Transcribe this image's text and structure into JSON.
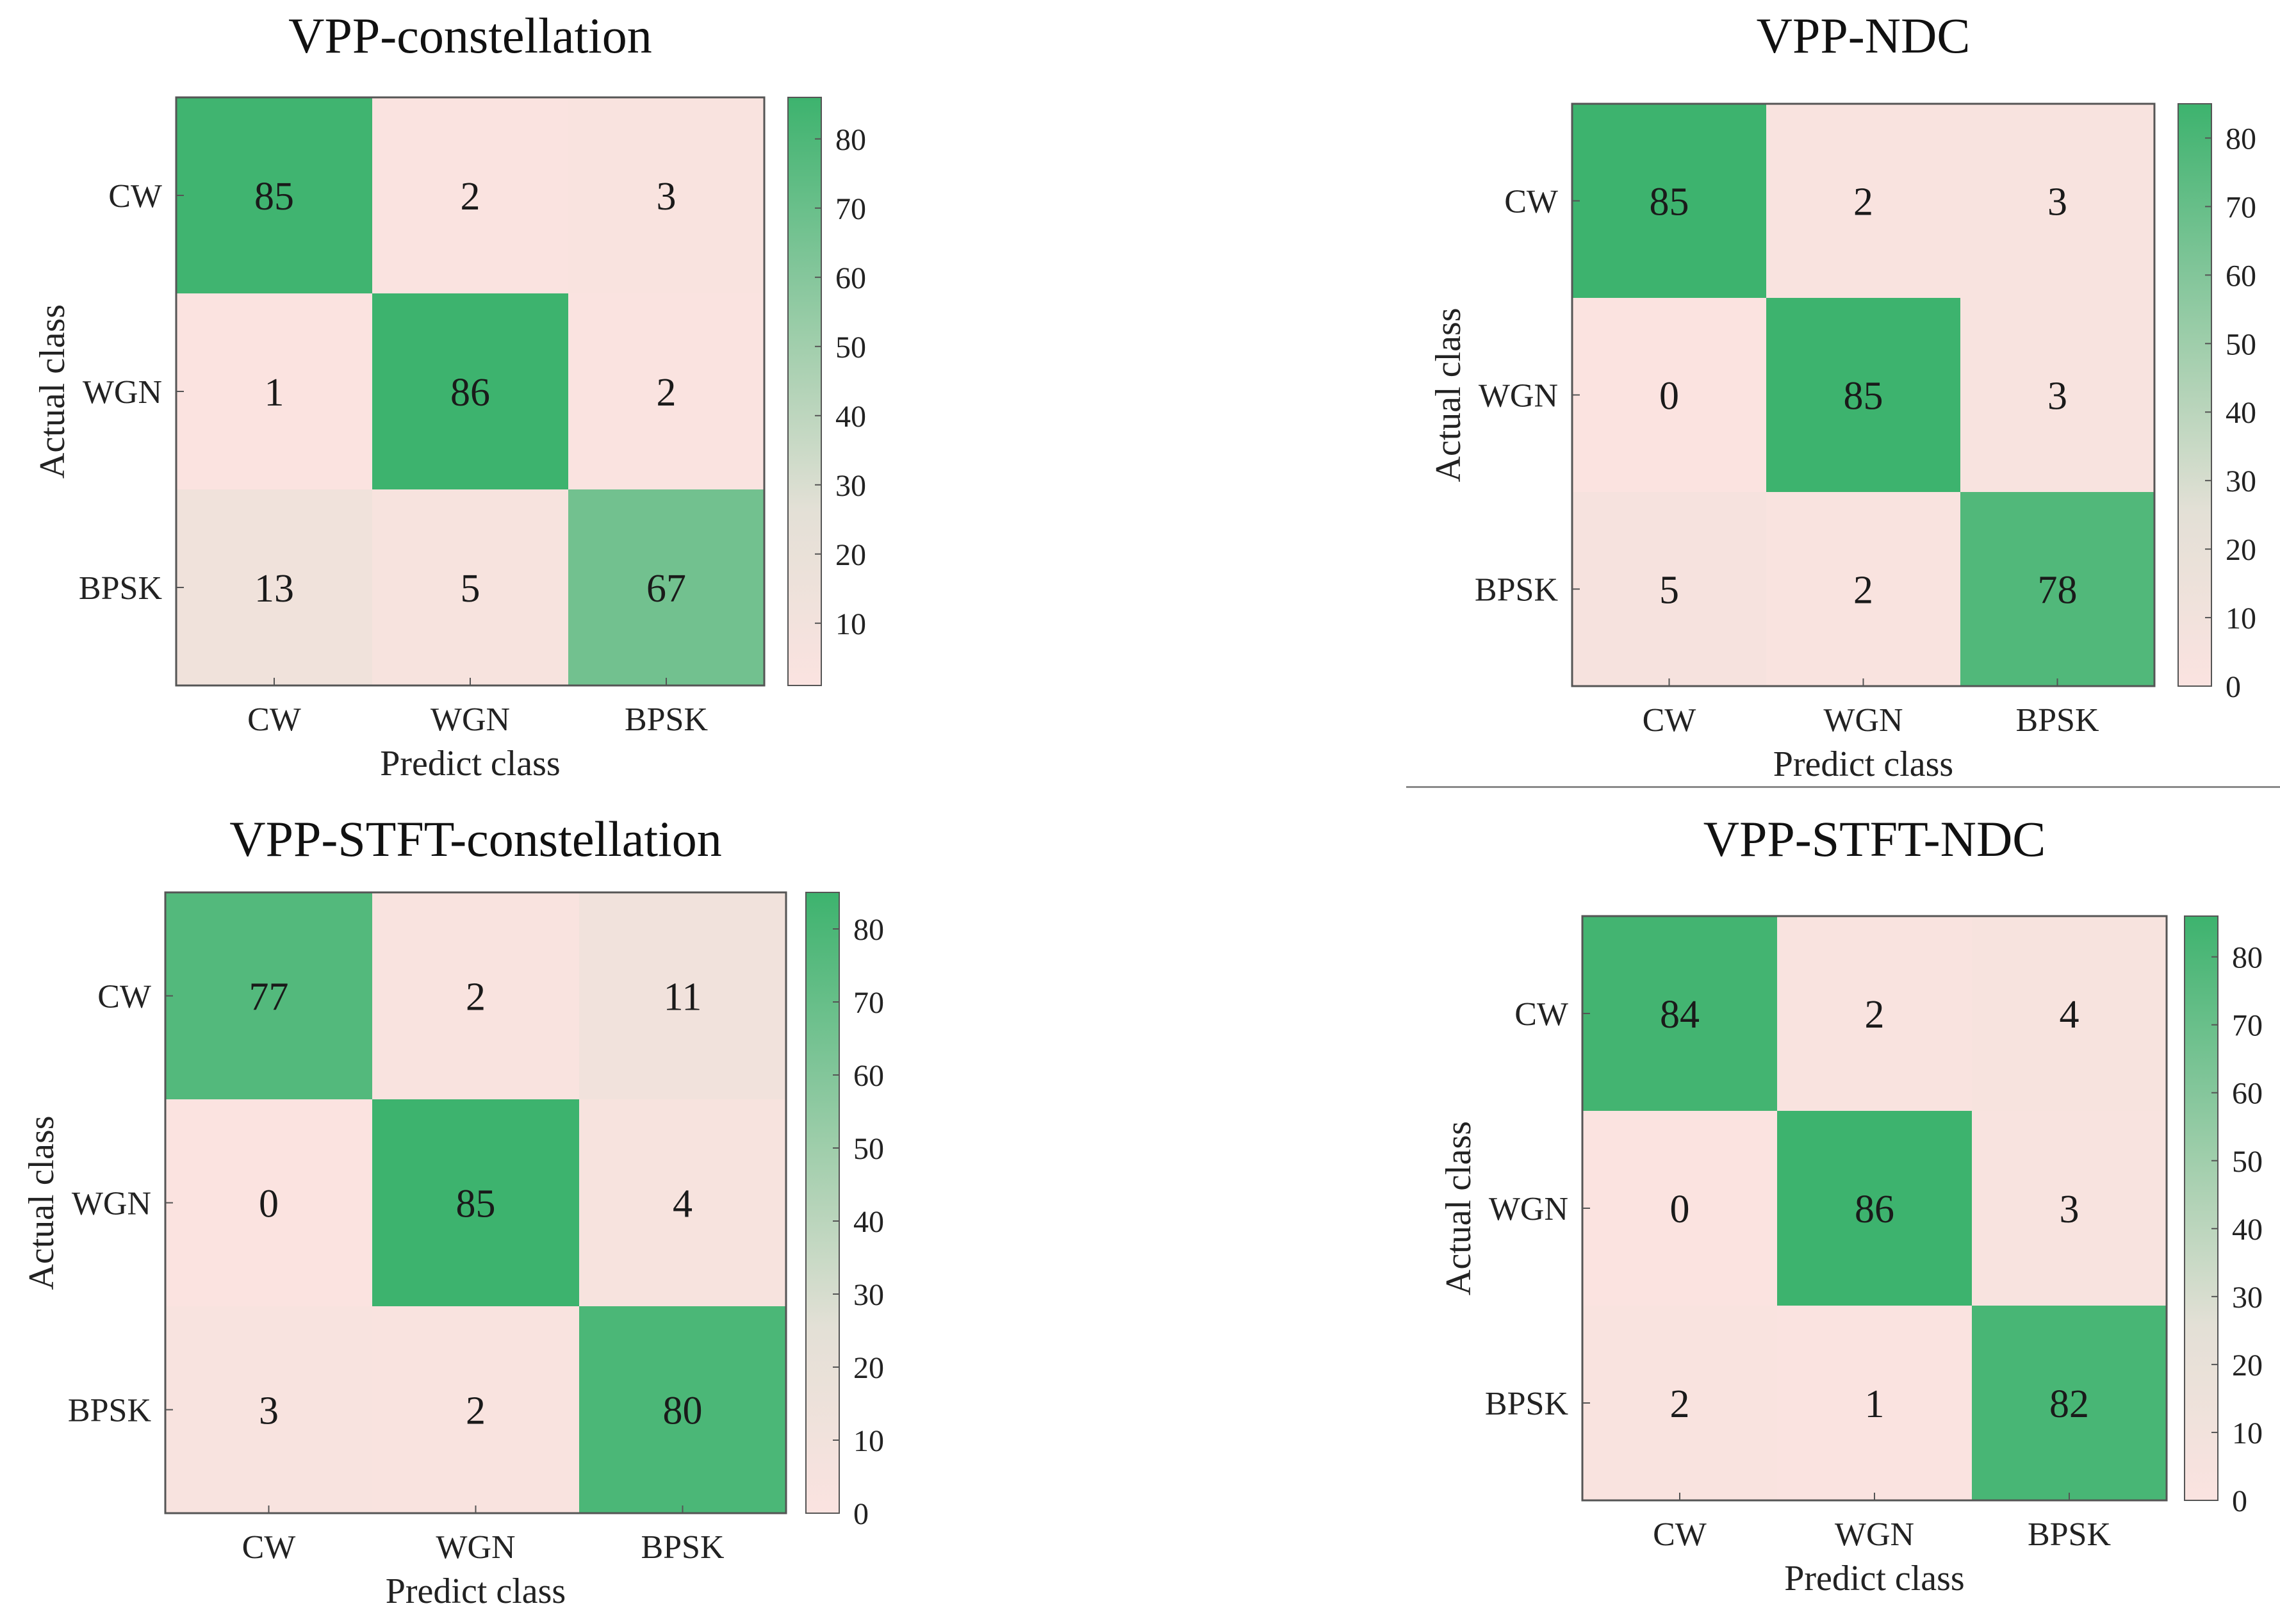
{
  "figure": {
    "panels": [
      "VPP-constellation",
      "VPP-NDC",
      "VPP-STFT-constellation",
      "VPP-STFT-NDC"
    ]
  },
  "colors": {
    "low": "#fbe3e0",
    "mid": "#e3e0d6",
    "high": "#3db36e",
    "frame": "#555555"
  },
  "chart_data": [
    {
      "type": "heatmap",
      "title": "VPP-constellation",
      "xlabel": "Predict class",
      "ylabel": "Actual class",
      "x_categories": [
        "CW",
        "WGN",
        "BPSK"
      ],
      "y_categories": [
        "CW",
        "WGN",
        "BPSK"
      ],
      "values": [
        [
          85,
          2,
          3
        ],
        [
          1,
          86,
          2
        ],
        [
          13,
          5,
          67
        ]
      ],
      "colorbar": {
        "range": [
          1,
          86
        ],
        "ticks": [
          10,
          20,
          30,
          40,
          50,
          60,
          70,
          80
        ]
      }
    },
    {
      "type": "heatmap",
      "title": "VPP-NDC",
      "xlabel": "Predict class",
      "ylabel": "Actual class",
      "x_categories": [
        "CW",
        "WGN",
        "BPSK"
      ],
      "y_categories": [
        "CW",
        "WGN",
        "BPSK"
      ],
      "values": [
        [
          85,
          2,
          3
        ],
        [
          0,
          85,
          3
        ],
        [
          5,
          2,
          78
        ]
      ],
      "colorbar": {
        "range": [
          0,
          85
        ],
        "ticks": [
          0,
          10,
          20,
          30,
          40,
          50,
          60,
          70,
          80
        ]
      }
    },
    {
      "type": "heatmap",
      "title": "VPP-STFT-constellation",
      "xlabel": "Predict class",
      "ylabel": "Actual class",
      "x_categories": [
        "CW",
        "WGN",
        "BPSK"
      ],
      "y_categories": [
        "CW",
        "WGN",
        "BPSK"
      ],
      "values": [
        [
          77,
          2,
          11
        ],
        [
          0,
          85,
          4
        ],
        [
          3,
          2,
          80
        ]
      ],
      "colorbar": {
        "range": [
          0,
          85
        ],
        "ticks": [
          0,
          10,
          20,
          30,
          40,
          50,
          60,
          70,
          80
        ]
      }
    },
    {
      "type": "heatmap",
      "title": "VPP-STFT-NDC",
      "xlabel": "Predict class",
      "ylabel": "Actual class",
      "x_categories": [
        "CW",
        "WGN",
        "BPSK"
      ],
      "y_categories": [
        "CW",
        "WGN",
        "BPSK"
      ],
      "values": [
        [
          84,
          2,
          4
        ],
        [
          0,
          86,
          3
        ],
        [
          2,
          1,
          82
        ]
      ],
      "colorbar": {
        "range": [
          0,
          86
        ],
        "ticks": [
          0,
          10,
          20,
          30,
          40,
          50,
          60,
          70,
          80
        ]
      }
    }
  ]
}
